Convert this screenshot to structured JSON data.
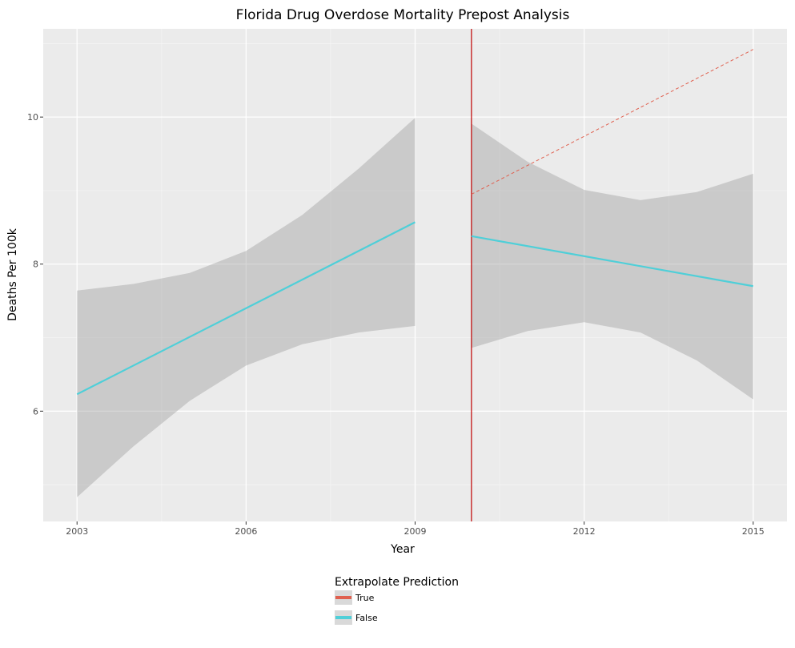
{
  "chart_data": {
    "type": "line",
    "title": "Florida Drug Overdose Mortality Prepost Analysis",
    "xlabel": "Year",
    "ylabel": "Deaths Per 100k",
    "xlim": [
      2002.4,
      2015.6
    ],
    "ylim": [
      4.5,
      11.2
    ],
    "x_ticks": [
      2003,
      2006,
      2009,
      2012,
      2015
    ],
    "y_ticks": [
      6,
      8,
      10
    ],
    "grid": true,
    "intervention_year": 2010,
    "intervention_color": "#c00000",
    "legend": {
      "title": "Extrapolate Prediction",
      "position": "bottom",
      "entries": [
        {
          "label": "True",
          "color": "#e0604f"
        },
        {
          "label": "False",
          "color": "#4fcfd8"
        }
      ]
    },
    "series": [
      {
        "group": "pre",
        "extrapolate": "False",
        "color": "#4fcfd8",
        "x": [
          2003,
          2009
        ],
        "y": [
          6.23,
          8.57
        ],
        "ci_x": [
          2003,
          2004,
          2005,
          2006,
          2007,
          2008,
          2009
        ],
        "ci_lower": [
          4.83,
          5.52,
          6.14,
          6.62,
          6.91,
          7.07,
          7.16
        ],
        "ci_upper": [
          7.64,
          7.73,
          7.88,
          8.18,
          8.67,
          9.3,
          9.99
        ]
      },
      {
        "group": "post",
        "extrapolate": "False",
        "color": "#4fcfd8",
        "x": [
          2010,
          2015
        ],
        "y": [
          8.38,
          7.7
        ],
        "ci_x": [
          2010,
          2011,
          2012,
          2013,
          2014,
          2015
        ],
        "ci_lower": [
          6.86,
          7.09,
          7.21,
          7.07,
          6.69,
          6.16
        ],
        "ci_upper": [
          9.91,
          9.39,
          9.01,
          8.87,
          8.98,
          9.23
        ]
      },
      {
        "group": "extrapolated",
        "extrapolate": "True",
        "color": "#e0604f",
        "dashed": true,
        "x": [
          2010,
          2015
        ],
        "y": [
          8.95,
          10.92
        ]
      }
    ]
  }
}
